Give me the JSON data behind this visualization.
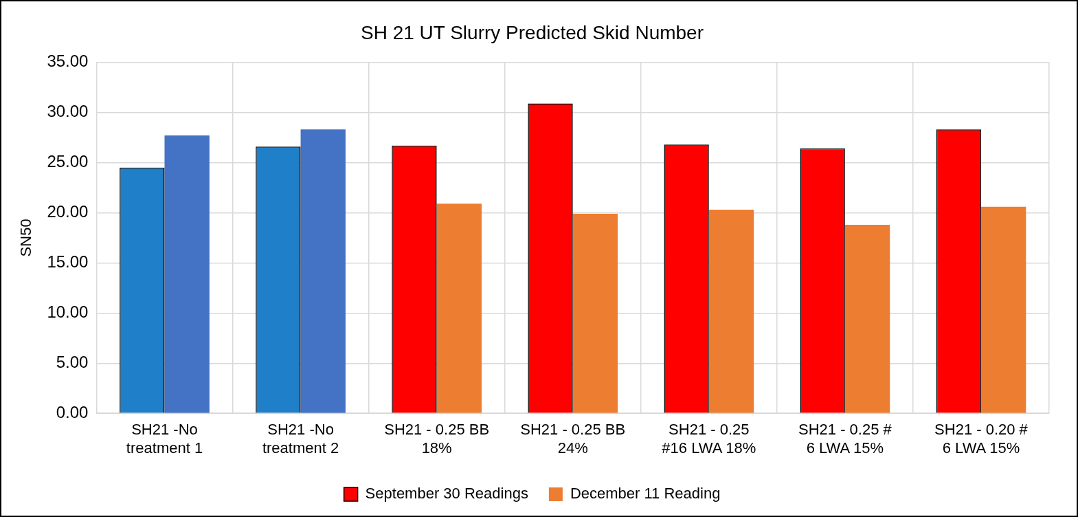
{
  "chart_data": {
    "type": "bar",
    "title": "SH 21 UT Slurry Predicted Skid Number",
    "ylabel": "SN50",
    "categories": [
      "SH21 -No treatment 1",
      "SH21 -No treatment 2",
      "SH21 - 0.25 BB 18%",
      "SH21 - 0.25 BB 24%",
      "SH21 - 0.25 #16 LWA 18%",
      "SH21 - 0.25 # 6 LWA 15%",
      "SH21 - 0.20 # 6 LWA 15%"
    ],
    "series": [
      {
        "name": "September 30 Readings",
        "color": "#ff0000",
        "colors": [
          "#1f7fc8",
          "#1f7fc8",
          "#ff0000",
          "#ff0000",
          "#ff0000",
          "#ff0000",
          "#ff0000"
        ],
        "values": [
          24.5,
          26.6,
          26.7,
          30.9,
          26.8,
          26.4,
          28.3
        ]
      },
      {
        "name": "December 11 Reading",
        "color": "#ed7d31",
        "colors": [
          "#4472c4",
          "#4472c4",
          "#ed7d31",
          "#ed7d31",
          "#ed7d31",
          "#ed7d31",
          "#ed7d31"
        ],
        "values": [
          27.7,
          28.3,
          20.9,
          19.9,
          20.3,
          18.8,
          20.6
        ]
      }
    ],
    "ylim": [
      0,
      35
    ],
    "yticks": [
      {
        "value": 0,
        "label": "0.00"
      },
      {
        "value": 5,
        "label": "5.00"
      },
      {
        "value": 10,
        "label": "10.00"
      },
      {
        "value": 15,
        "label": "15.00"
      },
      {
        "value": 20,
        "label": "20.00"
      },
      {
        "value": 25,
        "label": "25.00"
      },
      {
        "value": 30,
        "label": "30.00"
      },
      {
        "value": 35,
        "label": "35.00"
      }
    ],
    "grid": true,
    "legend": "bottom"
  }
}
